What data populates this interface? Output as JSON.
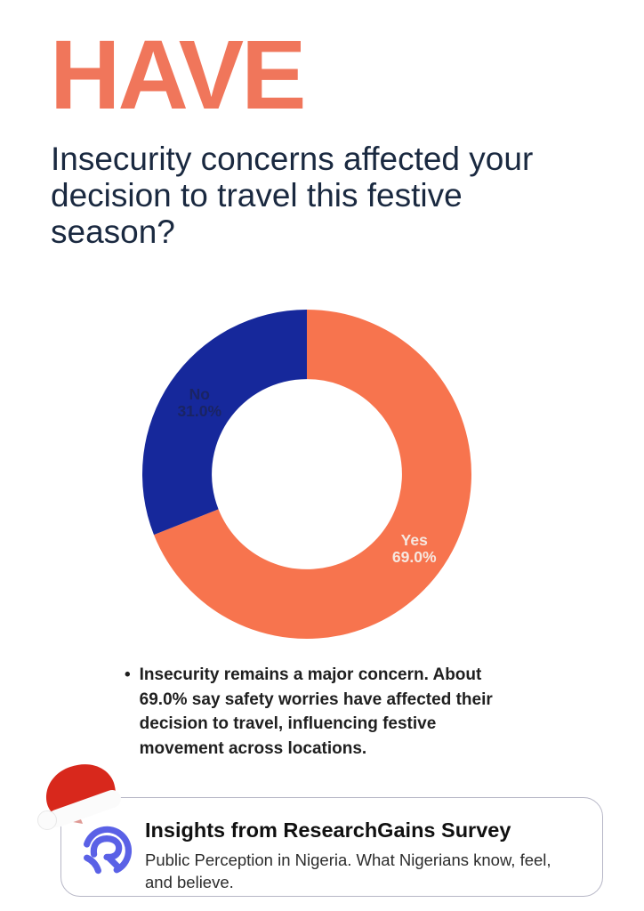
{
  "header": {
    "title": "HAVE",
    "question": "Insecurity concerns affected your\ndecision to travel this festive\nseason?"
  },
  "chart_data": {
    "type": "pie",
    "subtype": "donut",
    "title": "",
    "direction": "clockwise",
    "start_angle_deg": 0,
    "inner_radius_ratio": 0.578,
    "legend": "none",
    "categories": [
      "Yes",
      "No"
    ],
    "values": [
      69.0,
      31.0
    ],
    "segments": [
      {
        "label": "Yes",
        "value": 69.0,
        "pct_label": "69.0%",
        "color": "#F7744E",
        "label_color": "#F6E7DF"
      },
      {
        "label": "No",
        "value": 31.0,
        "pct_label": "31.0%",
        "color": "#16289B",
        "label_color": "#1A2463"
      }
    ]
  },
  "insight": {
    "bullet": "•",
    "text": "Insecurity remains a major concern. About\n69.0% say safety worries have affected their\ndecision to travel, influencing festive\nmovement across locations."
  },
  "footer": {
    "title": "Insights from ResearchGains Survey",
    "subtitle": "Public Perception in Nigeria. What Nigerians know, feel,\nand believe.",
    "icons": {
      "logo": "researchgains-logo",
      "decoration": "santa-hat"
    }
  },
  "colors": {
    "background": "#FFFFFF",
    "title_orange": "#F0765B",
    "question_navy": "#1A2940",
    "donut_yes_orange": "#F7744E",
    "donut_no_blue": "#16289B",
    "yes_label": "#F6E7DF",
    "no_label": "#1A2463",
    "insight_text": "#1F1F1F",
    "card_border": "#B6B6C6",
    "logo_indigo": "#5A61E6",
    "hat_red": "#D8281C"
  }
}
